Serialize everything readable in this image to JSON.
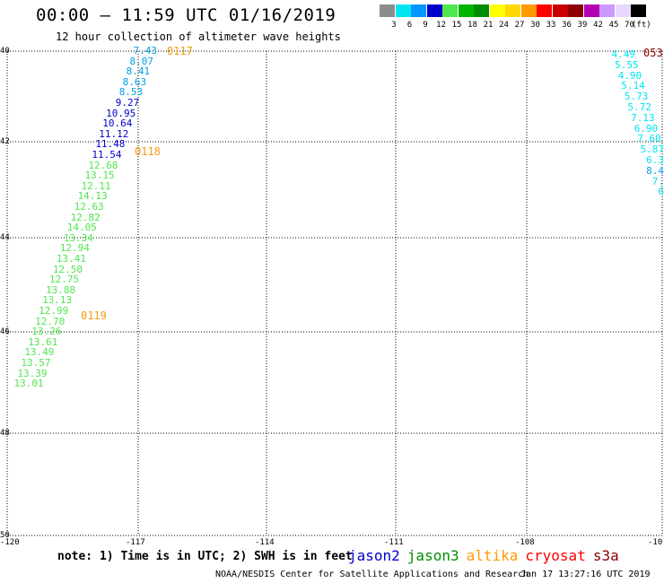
{
  "title": "00:00 – 11:59 UTC 01/16/2019",
  "subtitle": "12 hour collection of altimeter wave heights",
  "legend": {
    "unit": "(ft)",
    "bins": [
      {
        "label": "3",
        "color": "#8c8c8c"
      },
      {
        "label": "6",
        "color": "#00e5f0"
      },
      {
        "label": "9",
        "color": "#0096ff"
      },
      {
        "label": "12",
        "color": "#0000cd"
      },
      {
        "label": "15",
        "color": "#50e650"
      },
      {
        "label": "18",
        "color": "#00b400"
      },
      {
        "label": "21",
        "color": "#008c00"
      },
      {
        "label": "24",
        "color": "#ffff00"
      },
      {
        "label": "27",
        "color": "#ffd700"
      },
      {
        "label": "30",
        "color": "#ff9900"
      },
      {
        "label": "33",
        "color": "#ff0000"
      },
      {
        "label": "36",
        "color": "#c80000"
      },
      {
        "label": "39",
        "color": "#8b0000"
      },
      {
        "label": "42",
        "color": "#b400b4"
      },
      {
        "label": "45",
        "color": "#cc99ff"
      },
      {
        "label": "70",
        "color": "#e8d8ff"
      },
      {
        "label": "",
        "color": "#000000"
      }
    ]
  },
  "axes": {
    "y_labels": [
      "40",
      "42",
      "44",
      "46",
      "48",
      "50"
    ],
    "x_labels": [
      "-120",
      "-117",
      "-114",
      "-111",
      "-108",
      "-10"
    ]
  },
  "track_left": {
    "times": [
      "0117",
      "0118",
      "0119"
    ],
    "values": [
      {
        "v": "7.43",
        "c": "#00a0e6"
      },
      {
        "v": "8.07",
        "c": "#00a0e6"
      },
      {
        "v": "8.41",
        "c": "#00a0e6"
      },
      {
        "v": "8.63",
        "c": "#00a0e6"
      },
      {
        "v": "8.53",
        "c": "#00a0e6"
      },
      {
        "v": "9.27",
        "c": "#0000cd"
      },
      {
        "v": "10.95",
        "c": "#0000cd"
      },
      {
        "v": "10.64",
        "c": "#0000cd"
      },
      {
        "v": "11.12",
        "c": "#0000cd"
      },
      {
        "v": "11.48",
        "c": "#0000cd"
      },
      {
        "v": "11.54",
        "c": "#0000cd"
      },
      {
        "v": "12.68",
        "c": "#50e650"
      },
      {
        "v": "13.15",
        "c": "#50e650"
      },
      {
        "v": "12.11",
        "c": "#50e650"
      },
      {
        "v": "14.13",
        "c": "#50e650"
      },
      {
        "v": "12.63",
        "c": "#50e650"
      },
      {
        "v": "12.82",
        "c": "#50e650"
      },
      {
        "v": "14.05",
        "c": "#50e650"
      },
      {
        "v": "13.34",
        "c": "#50e650"
      },
      {
        "v": "12.94",
        "c": "#50e650"
      },
      {
        "v": "13.41",
        "c": "#50e650"
      },
      {
        "v": "12.50",
        "c": "#50e650"
      },
      {
        "v": "12.75",
        "c": "#50e650"
      },
      {
        "v": "13.88",
        "c": "#50e650"
      },
      {
        "v": "13.13",
        "c": "#50e650"
      },
      {
        "v": "12.99",
        "c": "#50e650"
      },
      {
        "v": "12.70",
        "c": "#50e650"
      },
      {
        "v": "13.26",
        "c": "#50e650"
      },
      {
        "v": "13.61",
        "c": "#50e650"
      },
      {
        "v": "13.49",
        "c": "#50e650"
      },
      {
        "v": "13.57",
        "c": "#50e650"
      },
      {
        "v": "13.39",
        "c": "#50e650"
      },
      {
        "v": "13.01",
        "c": "#50e650"
      }
    ]
  },
  "track_right": {
    "time": "053",
    "values": [
      {
        "v": "4.49",
        "c": "#00e5f0"
      },
      {
        "v": "5.55",
        "c": "#00e5f0"
      },
      {
        "v": "4.90",
        "c": "#00e5f0"
      },
      {
        "v": "5.14",
        "c": "#00e5f0"
      },
      {
        "v": "5.73",
        "c": "#00e5f0"
      },
      {
        "v": "5.72",
        "c": "#00e5f0"
      },
      {
        "v": "7.13",
        "c": "#00e5f0"
      },
      {
        "v": "6.90",
        "c": "#00e5f0"
      },
      {
        "v": "7.60",
        "c": "#00e5f0"
      },
      {
        "v": "5.87",
        "c": "#00e5f0"
      },
      {
        "v": "6.3",
        "c": "#00e5f0"
      },
      {
        "v": "8.4",
        "c": "#00a0e6"
      },
      {
        "v": "7.",
        "c": "#00e5f0"
      },
      {
        "v": "6",
        "c": "#00e5f0"
      }
    ]
  },
  "note": "note:  1) Time is in UTC; 2) SWH is in feet",
  "satellites": [
    {
      "name": "jason2",
      "color": "#0000cd"
    },
    {
      "name": "jason3",
      "color": "#008c00"
    },
    {
      "name": "altika",
      "color": "#ff9900"
    },
    {
      "name": "cryosat",
      "color": "#ff0000"
    },
    {
      "name": "s3a",
      "color": "#8b0000"
    }
  ],
  "credit": "NOAA/NESDIS Center for Satellite Applications and Research",
  "timestamp": "Jan 17 13:27:16 UTC 2019"
}
